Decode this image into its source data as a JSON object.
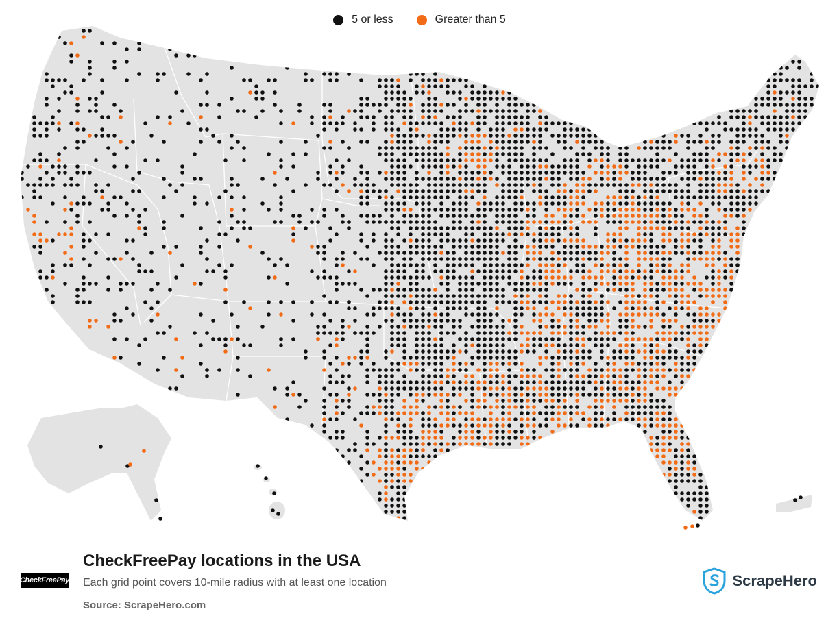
{
  "legend": {
    "items": [
      {
        "label": "5 or less",
        "color": "#111111"
      },
      {
        "label": "Greater than 5",
        "color": "#f26b16"
      }
    ]
  },
  "map": {
    "land_color": "#e3e3e3",
    "border_color": "#ffffff",
    "regions": [
      "contiguous-us",
      "alaska",
      "hawaii",
      "puerto-rico"
    ]
  },
  "footer": {
    "logo_text": "CheckFreePay",
    "title": "CheckFreePay locations in the USA",
    "subtitle": "Each grid point covers 10-mile radius with at least one location",
    "source": "Source: ScrapeHero.com"
  },
  "brand": {
    "name": "ScrapeHero",
    "icon": "shield-icon",
    "color": "#2aa3dc"
  }
}
